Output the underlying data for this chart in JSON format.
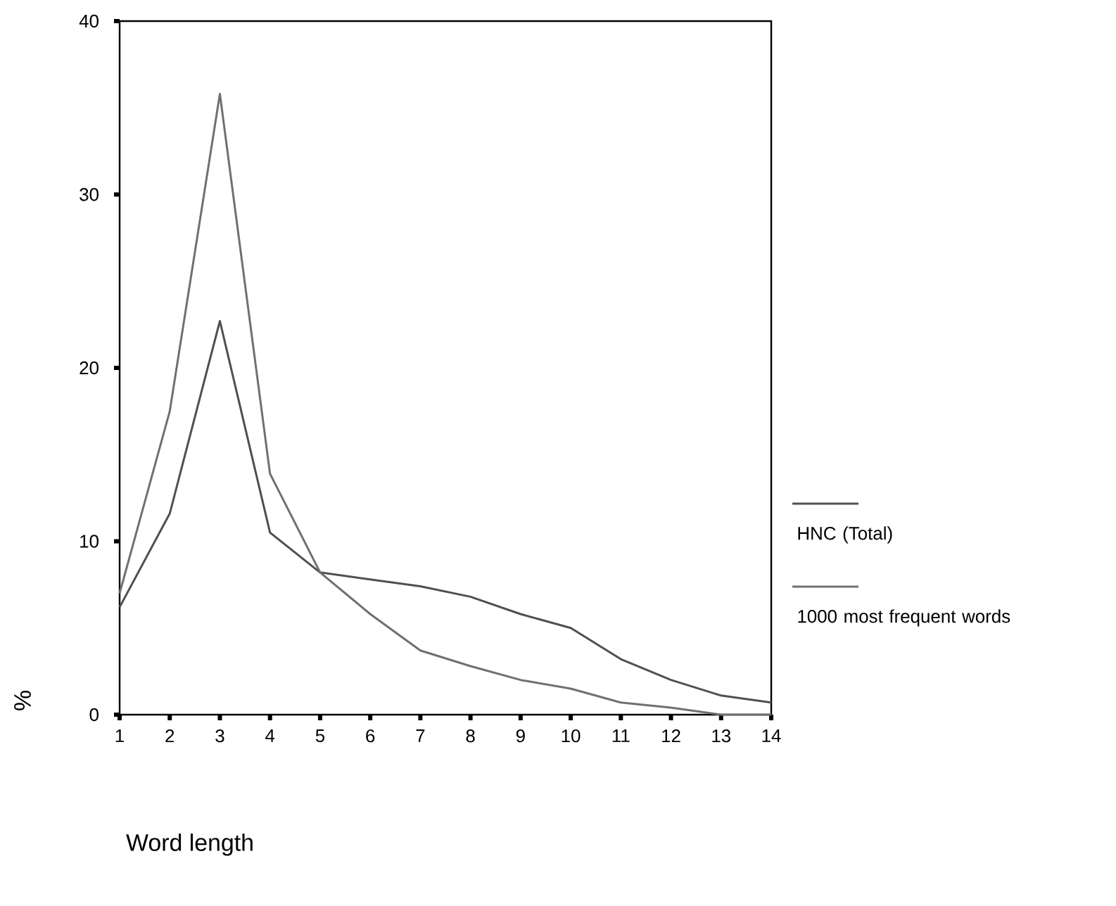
{
  "chart_data": {
    "type": "line",
    "xlabel": "Word length",
    "ylabel": "%",
    "x": [
      1,
      2,
      3,
      4,
      5,
      6,
      7,
      8,
      9,
      10,
      11,
      12,
      13,
      14
    ],
    "xlim": [
      1,
      14
    ],
    "xticks": [
      1,
      2,
      3,
      4,
      5,
      6,
      7,
      8,
      9,
      10,
      11,
      12,
      13,
      14
    ],
    "ylim": [
      0,
      40
    ],
    "yticks": [
      0,
      10,
      20,
      30,
      40
    ],
    "series": [
      {
        "name": "HNC (Total)",
        "color": "#505050",
        "values": [
          6.2,
          11.6,
          22.7,
          10.5,
          8.2,
          7.8,
          7.4,
          6.8,
          5.8,
          5.0,
          3.2,
          2.0,
          1.1,
          0.7
        ]
      },
      {
        "name": "1000 most frequent words",
        "color": "#707070",
        "values": [
          7.0,
          17.5,
          35.8,
          13.9,
          8.2,
          5.8,
          3.7,
          2.8,
          2.0,
          1.5,
          0.7,
          0.4,
          0.0,
          0.0
        ]
      }
    ],
    "legend": "right",
    "grid": false,
    "marker": "none",
    "line_style": "solid"
  }
}
